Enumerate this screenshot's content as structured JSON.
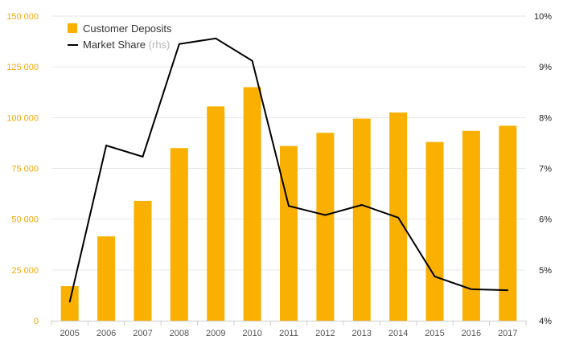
{
  "chart_data": {
    "type": "bar",
    "categories": [
      "2005",
      "2006",
      "2007",
      "2008",
      "2009",
      "2010",
      "2011",
      "2012",
      "2013",
      "2014",
      "2015",
      "2016",
      "2017"
    ],
    "series": [
      {
        "name": "Customer Deposits",
        "type": "bar",
        "axis": "left",
        "values": [
          17000,
          41500,
          59000,
          85000,
          105500,
          115000,
          86000,
          92500,
          99500,
          102500,
          88000,
          93500,
          96000
        ]
      },
      {
        "name": "Market Share",
        "note": "(rhs)",
        "type": "line",
        "axis": "right",
        "values": [
          4.37,
          7.45,
          7.23,
          9.45,
          9.56,
          9.12,
          6.26,
          6.08,
          6.28,
          6.03,
          4.87,
          4.62,
          4.6
        ]
      }
    ],
    "y_left": {
      "lim": [
        0,
        150000
      ],
      "ticks": [
        0,
        25000,
        50000,
        75000,
        100000,
        125000,
        150000
      ],
      "tick_labels": [
        "0",
        "25 000",
        "50 000",
        "75 000",
        "100 000",
        "125 000",
        "150 000"
      ]
    },
    "y_right": {
      "lim": [
        4,
        10
      ],
      "ticks": [
        4,
        5,
        6,
        7,
        8,
        9,
        10
      ],
      "tick_labels": [
        "4%",
        "5%",
        "6%",
        "7%",
        "8%",
        "9%",
        "10%"
      ]
    },
    "grid": true,
    "legend": "top-left",
    "colors": {
      "bar": "#f9b000",
      "line": "#000000",
      "grid": "#e6e6e6",
      "left_axis_text": "#f5a800"
    }
  }
}
